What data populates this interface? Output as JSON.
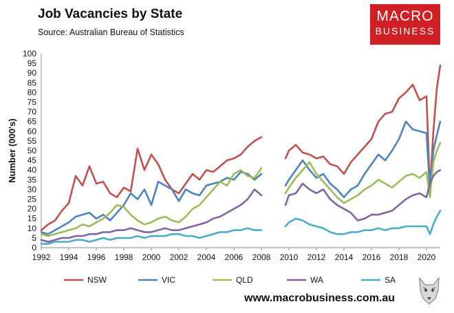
{
  "header": {
    "title": "Job Vacancies by State",
    "source": "Source: Australian Bureau of Statistics",
    "logo_line1": "MACRO",
    "logo_line2": "BUSINESS",
    "website": "www.macrobusiness.com.au"
  },
  "chart_data": {
    "type": "line",
    "title": "Job Vacancies by State",
    "xlabel": "",
    "ylabel": "Number (000's)",
    "xlim": [
      1992,
      2021
    ],
    "ylim": [
      0,
      100
    ],
    "yticks": [
      0,
      5,
      10,
      15,
      20,
      25,
      30,
      35,
      40,
      45,
      50,
      55,
      60,
      65,
      70,
      75,
      80,
      85,
      90,
      95,
      100
    ],
    "xticks": [
      "1992",
      "1994",
      "1996",
      "1998",
      "2000",
      "2002",
      "2004",
      "2006",
      "2008",
      "2010",
      "2012",
      "2014",
      "2016",
      "2018",
      "2020"
    ],
    "gap": [
      2008.6,
      2009.6
    ],
    "legend_position": "bottom",
    "series": [
      {
        "name": "NSW",
        "color": "#c0504d",
        "x": [
          1992,
          1992.5,
          1993,
          1993.5,
          1994,
          1994.5,
          1995,
          1995.5,
          1996,
          1996.5,
          1997,
          1997.5,
          1998,
          1998.5,
          1999,
          1999.5,
          2000,
          2000.5,
          2001,
          2001.5,
          2002,
          2002.5,
          2003,
          2003.5,
          2004,
          2004.5,
          2005,
          2005.5,
          2006,
          2006.5,
          2007,
          2007.5,
          2008,
          2009.75,
          2010,
          2010.5,
          2011,
          2011.5,
          2012,
          2012.5,
          2013,
          2013.5,
          2014,
          2014.5,
          2015,
          2015.5,
          2016,
          2016.5,
          2017,
          2017.5,
          2018,
          2018.5,
          2019,
          2019.5,
          2020,
          2020.25,
          2020.5,
          2020.75,
          2021
        ],
        "y": [
          9,
          12,
          14,
          19,
          23,
          37,
          32,
          42,
          33,
          34,
          28,
          26,
          31,
          29,
          51,
          40,
          48,
          43,
          35,
          30,
          28,
          33,
          38,
          35,
          40,
          39,
          42,
          45,
          46,
          48,
          52,
          55,
          57,
          46,
          50,
          53,
          49,
          48,
          46,
          47,
          43,
          42,
          38,
          44,
          48,
          52,
          56,
          65,
          69,
          70,
          77,
          80,
          84,
          76,
          78,
          30,
          60,
          82,
          94
        ]
      },
      {
        "name": "VIC",
        "color": "#4f81bd",
        "x": [
          1992,
          1992.5,
          1993,
          1993.5,
          1994,
          1994.5,
          1995,
          1995.5,
          1996,
          1996.5,
          1997,
          1997.5,
          1998,
          1998.5,
          1999,
          1999.5,
          2000,
          2000.5,
          2001,
          2001.5,
          2002,
          2002.5,
          2003,
          2003.5,
          2004,
          2004.5,
          2005,
          2005.5,
          2006,
          2006.5,
          2007,
          2007.5,
          2008,
          2009.75,
          2010,
          2010.5,
          2011,
          2011.5,
          2012,
          2012.5,
          2013,
          2013.5,
          2014,
          2014.5,
          2015,
          2015.5,
          2016,
          2016.5,
          2017,
          2017.5,
          2018,
          2018.5,
          2019,
          2019.5,
          2020,
          2020.25,
          2020.5,
          2020.75,
          2021
        ],
        "y": [
          8,
          7,
          9,
          11,
          13,
          16,
          17,
          18,
          15,
          17,
          14,
          18,
          22,
          28,
          25,
          30,
          22,
          34,
          32,
          30,
          24,
          30,
          28,
          27,
          32,
          33,
          34,
          36,
          35,
          39,
          38,
          35,
          38,
          32,
          35,
          40,
          45,
          40,
          36,
          38,
          33,
          30,
          26,
          30,
          32,
          38,
          43,
          48,
          45,
          50,
          56,
          65,
          61,
          60,
          59,
          30,
          50,
          58,
          65
        ]
      },
      {
        "name": "QLD",
        "color": "#9bbb59",
        "x": [
          1992,
          1992.5,
          1993,
          1993.5,
          1994,
          1994.5,
          1995,
          1995.5,
          1996,
          1996.5,
          1997,
          1997.5,
          1998,
          1998.5,
          1999,
          1999.5,
          2000,
          2000.5,
          2001,
          2001.5,
          2002,
          2002.5,
          2003,
          2003.5,
          2004,
          2004.5,
          2005,
          2005.5,
          2006,
          2006.5,
          2007,
          2007.5,
          2008,
          2009.75,
          2010,
          2010.5,
          2011,
          2011.5,
          2012,
          2012.5,
          2013,
          2013.5,
          2014,
          2014.5,
          2015,
          2015.5,
          2016,
          2016.5,
          2017,
          2017.5,
          2018,
          2018.5,
          2019,
          2019.5,
          2020,
          2020.25,
          2020.5,
          2020.75,
          2021
        ],
        "y": [
          7,
          6,
          7,
          8,
          9,
          10,
          12,
          11,
          13,
          15,
          18,
          22,
          21,
          17,
          14,
          12,
          13,
          15,
          16,
          14,
          13,
          16,
          20,
          22,
          26,
          30,
          34,
          32,
          38,
          40,
          37,
          36,
          41,
          28,
          31,
          36,
          40,
          44,
          38,
          34,
          30,
          26,
          23,
          25,
          27,
          30,
          32,
          35,
          33,
          31,
          34,
          37,
          38,
          36,
          39,
          26,
          44,
          50,
          54
        ]
      },
      {
        "name": "WA",
        "color": "#8064a2",
        "x": [
          1992,
          1992.5,
          1993,
          1993.5,
          1994,
          1994.5,
          1995,
          1995.5,
          1996,
          1996.5,
          1997,
          1997.5,
          1998,
          1998.5,
          1999,
          1999.5,
          2000,
          2000.5,
          2001,
          2001.5,
          2002,
          2002.5,
          2003,
          2003.5,
          2004,
          2004.5,
          2005,
          2005.5,
          2006,
          2006.5,
          2007,
          2007.5,
          2008,
          2009.75,
          2010,
          2010.5,
          2011,
          2011.5,
          2012,
          2012.5,
          2013,
          2013.5,
          2014,
          2014.5,
          2015,
          2015.5,
          2016,
          2016.5,
          2017,
          2017.5,
          2018,
          2018.5,
          2019,
          2019.5,
          2020,
          2020.25,
          2020.5,
          2020.75,
          2021
        ],
        "y": [
          4,
          3,
          4,
          5,
          5,
          6,
          6,
          7,
          7,
          8,
          8,
          9,
          9,
          10,
          9,
          8,
          8,
          9,
          10,
          9,
          9,
          10,
          11,
          12,
          13,
          15,
          16,
          18,
          20,
          22,
          25,
          30,
          27,
          22,
          27,
          28,
          33,
          30,
          28,
          30,
          25,
          22,
          20,
          18,
          14,
          15,
          17,
          17,
          18,
          19,
          22,
          25,
          27,
          28,
          26,
          33,
          37,
          39,
          40
        ]
      },
      {
        "name": "SA",
        "color": "#4bacc6",
        "x": [
          1992,
          1992.5,
          1993,
          1993.5,
          1994,
          1994.5,
          1995,
          1995.5,
          1996,
          1996.5,
          1997,
          1997.5,
          1998,
          1998.5,
          1999,
          1999.5,
          2000,
          2000.5,
          2001,
          2001.5,
          2002,
          2002.5,
          2003,
          2003.5,
          2004,
          2004.5,
          2005,
          2005.5,
          2006,
          2006.5,
          2007,
          2007.5,
          2008,
          2009.75,
          2010,
          2010.5,
          2011,
          2011.5,
          2012,
          2012.5,
          2013,
          2013.5,
          2014,
          2014.5,
          2015,
          2015.5,
          2016,
          2016.5,
          2017,
          2017.5,
          2018,
          2018.5,
          2019,
          2019.5,
          2020,
          2020.25,
          2020.5,
          2020.75,
          2021
        ],
        "y": [
          2,
          2,
          3,
          3,
          3,
          4,
          4,
          3,
          4,
          5,
          4,
          5,
          5,
          5,
          6,
          5,
          6,
          6,
          6,
          7,
          7,
          6,
          6,
          5,
          6,
          7,
          8,
          8,
          9,
          9,
          10,
          9,
          9,
          11,
          13,
          15,
          14,
          12,
          11,
          10,
          8,
          7,
          7,
          8,
          8,
          9,
          9,
          10,
          9,
          10,
          10,
          11,
          11,
          11,
          11,
          7,
          12,
          16,
          19
        ]
      }
    ]
  },
  "icons": {
    "wolf": "wolf-logo-icon"
  }
}
